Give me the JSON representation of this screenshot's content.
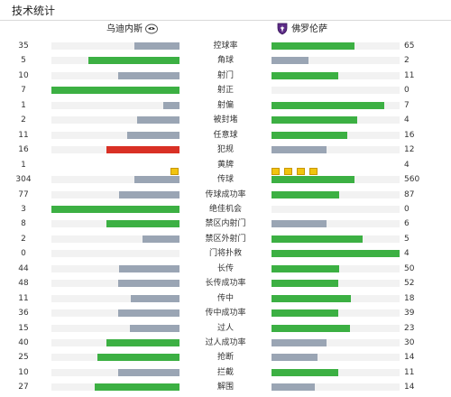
{
  "header": {
    "title": "技术统计"
  },
  "teams": {
    "home": {
      "name": "乌迪内斯",
      "logo": "udinese-crest-icon"
    },
    "away": {
      "name": "佛罗伦萨",
      "logo": "fiorentina-lily-icon"
    }
  },
  "colors": {
    "green": "#3cb043",
    "gray": "#9aa5b4",
    "red": "#d93025",
    "yellow": "#f1c40f",
    "track": "#f2f2f2"
  },
  "stats": [
    {
      "name": "控球率",
      "home": "35",
      "away": "65",
      "home_pct": 35,
      "away_pct": 65,
      "home_color": "gray",
      "away_color": "green"
    },
    {
      "name": "角球",
      "home": "5",
      "away": "2",
      "home_pct": 71,
      "away_pct": 29,
      "home_color": "green",
      "away_color": "gray"
    },
    {
      "name": "射门",
      "home": "10",
      "away": "11",
      "home_pct": 48,
      "away_pct": 52,
      "home_color": "gray",
      "away_color": "green"
    },
    {
      "name": "射正",
      "home": "7",
      "away": "0",
      "home_pct": 100,
      "away_pct": 0,
      "home_color": "green",
      "away_color": "gray"
    },
    {
      "name": "射偏",
      "home": "1",
      "away": "7",
      "home_pct": 13,
      "away_pct": 88,
      "home_color": "gray",
      "away_color": "green"
    },
    {
      "name": "被封堵",
      "home": "2",
      "away": "4",
      "home_pct": 33,
      "away_pct": 67,
      "home_color": "gray",
      "away_color": "green"
    },
    {
      "name": "任意球",
      "home": "11",
      "away": "16",
      "home_pct": 41,
      "away_pct": 59,
      "home_color": "gray",
      "away_color": "green"
    },
    {
      "name": "犯规",
      "home": "16",
      "away": "12",
      "home_pct": 57,
      "away_pct": 43,
      "home_color": "red",
      "away_color": "gray"
    },
    {
      "name": "黄牌",
      "home": "1",
      "away": "4",
      "type": "cards",
      "home_cards": 1,
      "away_cards": 4
    },
    {
      "name": "传球",
      "home": "304",
      "away": "560",
      "home_pct": 35,
      "away_pct": 65,
      "home_color": "gray",
      "away_color": "green"
    },
    {
      "name": "传球成功率",
      "home": "77",
      "away": "87",
      "home_pct": 47,
      "away_pct": 53,
      "home_color": "gray",
      "away_color": "green"
    },
    {
      "name": "绝佳机会",
      "home": "3",
      "away": "0",
      "home_pct": 100,
      "away_pct": 0,
      "home_color": "green",
      "away_color": "gray"
    },
    {
      "name": "禁区内射门",
      "home": "8",
      "away": "6",
      "home_pct": 57,
      "away_pct": 43,
      "home_color": "green",
      "away_color": "gray"
    },
    {
      "name": "禁区外射门",
      "home": "2",
      "away": "5",
      "home_pct": 29,
      "away_pct": 71,
      "home_color": "gray",
      "away_color": "green"
    },
    {
      "name": "门将扑救",
      "home": "0",
      "away": "4",
      "home_pct": 0,
      "away_pct": 100,
      "home_color": "gray",
      "away_color": "green"
    },
    {
      "name": "长传",
      "home": "44",
      "away": "50",
      "home_pct": 47,
      "away_pct": 53,
      "home_color": "gray",
      "away_color": "green"
    },
    {
      "name": "长传成功率",
      "home": "48",
      "away": "52",
      "home_pct": 48,
      "away_pct": 52,
      "home_color": "gray",
      "away_color": "green"
    },
    {
      "name": "传中",
      "home": "11",
      "away": "18",
      "home_pct": 38,
      "away_pct": 62,
      "home_color": "gray",
      "away_color": "green"
    },
    {
      "name": "传中成功率",
      "home": "36",
      "away": "39",
      "home_pct": 48,
      "away_pct": 52,
      "home_color": "gray",
      "away_color": "green"
    },
    {
      "name": "过人",
      "home": "15",
      "away": "23",
      "home_pct": 39,
      "away_pct": 61,
      "home_color": "gray",
      "away_color": "green"
    },
    {
      "name": "过人成功率",
      "home": "40",
      "away": "30",
      "home_pct": 57,
      "away_pct": 43,
      "home_color": "green",
      "away_color": "gray"
    },
    {
      "name": "抢断",
      "home": "25",
      "away": "14",
      "home_pct": 64,
      "away_pct": 36,
      "home_color": "green",
      "away_color": "gray"
    },
    {
      "name": "拦截",
      "home": "10",
      "away": "11",
      "home_pct": 48,
      "away_pct": 52,
      "home_color": "gray",
      "away_color": "green"
    },
    {
      "name": "解围",
      "home": "27",
      "away": "14",
      "home_pct": 66,
      "away_pct": 34,
      "home_color": "green",
      "away_color": "gray"
    }
  ]
}
